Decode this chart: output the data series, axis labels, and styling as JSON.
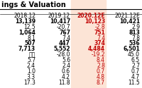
{
  "title": "ings & Valuation",
  "columns": [
    "2018.12",
    "2019.12",
    "2020.12E",
    "2021.12E"
  ],
  "rows": [
    [
      "13,139",
      "10,417",
      "10,123",
      "10,421"
    ],
    [
      "12.5",
      "-20.7",
      "-2.8",
      "2.9"
    ],
    [
      "1,064",
      "767",
      "751",
      "813"
    ],
    [
      "8.1",
      "7.4",
      "7.4",
      "7.8"
    ],
    [
      "507",
      "447",
      "374",
      "536"
    ],
    [
      "7,713",
      "5,552",
      "4,484",
      "6,501"
    ],
    [
      "적전",
      "-28.0",
      "-19.2",
      "45.0"
    ],
    [
      "5.7",
      "5.6",
      "8.4",
      "6.5"
    ],
    [
      "2.4",
      "2.4",
      "2.8",
      "2.7"
    ],
    [
      "1.0",
      "0.6",
      "0.7",
      "0.7"
    ],
    [
      "3.3",
      "4.2",
      "4.8",
      "4.7"
    ],
    [
      "17.3",
      "11.8",
      "8.7",
      "11.5"
    ]
  ],
  "highlight_col": 2,
  "highlight_bg": "#fce4d6",
  "col_highlight_color": "#c00000",
  "normal_color": "#000000",
  "bold_rows": [
    0,
    2,
    4,
    5
  ],
  "title_fontsize": 7,
  "data_fontsize": 5.5
}
